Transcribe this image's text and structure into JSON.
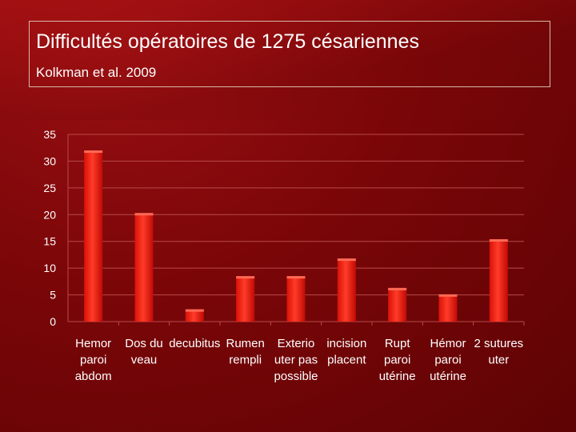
{
  "header": {
    "title": "Difficultés opératoires de 1275 césariennes",
    "subtitle": "Kolkman et al. 2009"
  },
  "colors": {
    "bar": "#ff2a1a",
    "bar_dark": "#c80c06",
    "grid": "#b84a4a",
    "text": "#ffffff"
  },
  "chart_data": {
    "type": "bar",
    "categories": [
      [
        "Hemor",
        "paroi",
        "abdom"
      ],
      [
        "Dos du",
        "veau"
      ],
      [
        "decubitus"
      ],
      [
        "Rumen",
        "rempli"
      ],
      [
        "Exterio",
        "uter pas",
        "possible"
      ],
      [
        "incision",
        "placent"
      ],
      [
        "Rupt",
        "paroi",
        "utérine"
      ],
      [
        "Hémor",
        "paroi",
        "utérine"
      ],
      [
        "2 sutures",
        "uter"
      ]
    ],
    "values": [
      32,
      20.3,
      2.3,
      8.5,
      8.5,
      11.8,
      6.3,
      5.1,
      15.4
    ],
    "ylim": [
      0,
      35
    ],
    "yticks": [
      0,
      5,
      10,
      15,
      20,
      25,
      30,
      35
    ],
    "grid": true,
    "title": "",
    "xlabel": "",
    "ylabel": ""
  }
}
